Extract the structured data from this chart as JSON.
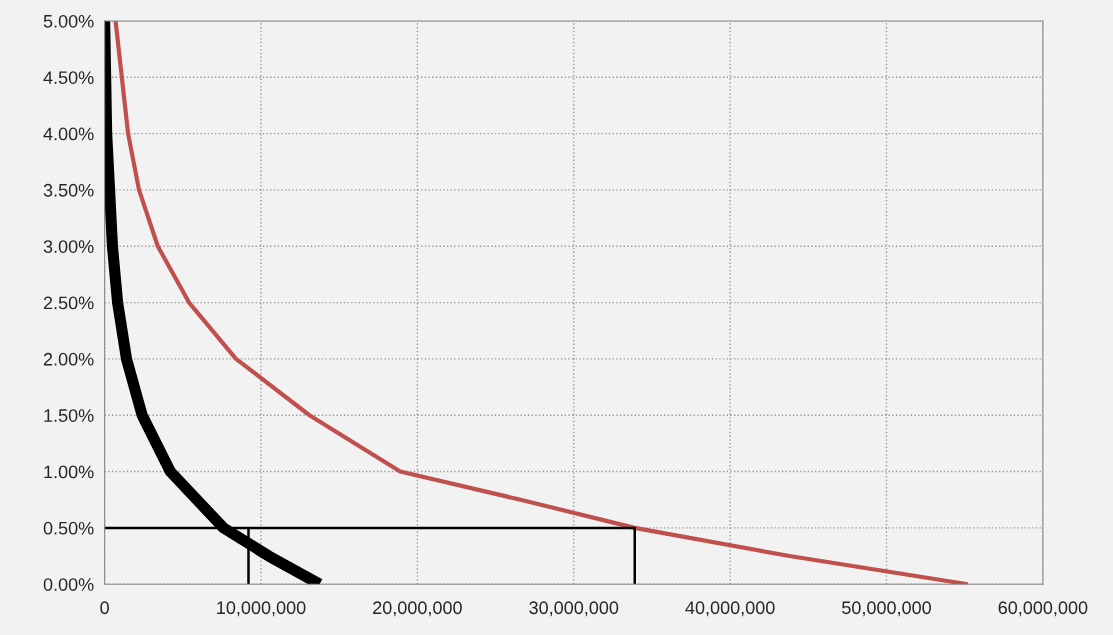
{
  "chart_data": {
    "type": "line",
    "xlim": [
      0,
      60000000
    ],
    "ylim": [
      0,
      5
    ],
    "xticks": [
      0,
      {
        "value": 10000000,
        "label": "10,000,000"
      },
      {
        "value": 20000000,
        "label": "20,000,000"
      },
      {
        "value": 30000000,
        "label": "30,000,000"
      },
      {
        "value": 40000000,
        "label": "40,000,000"
      },
      {
        "value": 50000000,
        "label": "50,000,000"
      },
      {
        "value": 60000000,
        "label": "60,000,000"
      }
    ],
    "yticks": [
      {
        "value": 0,
        "label": "0.00%"
      },
      {
        "value": 0.5,
        "label": "0.50%"
      },
      {
        "value": 1,
        "label": "1.00%"
      },
      {
        "value": 1.5,
        "label": "1.50%"
      },
      {
        "value": 2,
        "label": "2.00%"
      },
      {
        "value": 2.5,
        "label": "2.50%"
      },
      {
        "value": 3,
        "label": "3.00%"
      },
      {
        "value": 3.5,
        "label": "3.50%"
      },
      {
        "value": 4,
        "label": "4.00%"
      },
      {
        "value": 4.5,
        "label": "4.50%"
      },
      {
        "value": 5,
        "label": "5.00%"
      }
    ],
    "grid": true,
    "legend": false,
    "marker": "none",
    "line_style": "solid",
    "series": [
      {
        "color": "#000000",
        "x": [
          0,
          130000,
          500000,
          830000,
          1400000,
          2400000,
          4200000,
          7600000,
          10500000,
          13750000
        ],
        "values": [
          5,
          4,
          3,
          2.5,
          2,
          1.5,
          1,
          0.5,
          0.25,
          0
        ]
      },
      {
        "color": "#c0504d",
        "x": [
          700000,
          1100000,
          1500000,
          2200000,
          3400000,
          5400000,
          8400000,
          13100000,
          18900000,
          26600000,
          33900000,
          43800000,
          55200000
        ],
        "values": [
          5,
          4.5,
          4,
          3.5,
          3,
          2.5,
          2,
          1.5,
          1,
          0.75,
          0.5,
          0.25,
          0
        ]
      },
      {
        "color": "#000000",
        "x": [
          0,
          33900000,
          33900000
        ],
        "values": [
          0.5,
          0.5,
          0
        ]
      },
      {
        "color": "#000000",
        "x": [
          9200000,
          9200000
        ],
        "values": [
          0.5,
          0
        ]
      }
    ]
  }
}
